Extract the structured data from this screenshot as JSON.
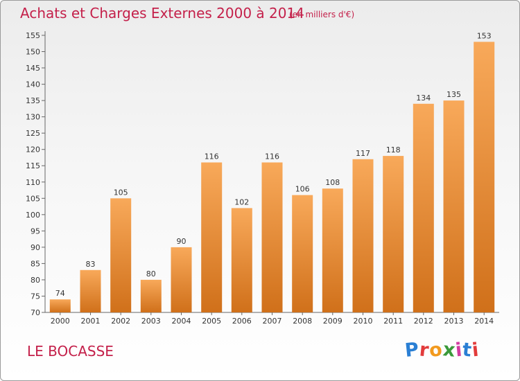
{
  "header": {
    "title": "Achats et Charges Externes 2000 à 2014",
    "subtitle": "(en milliers d'€)"
  },
  "footer": {
    "commune": "LE BOCASSE",
    "logo_text": "Proxiti"
  },
  "chart_data": {
    "type": "bar",
    "title": "Achats et Charges Externes 2000 à 2014",
    "subtitle": "(en milliers d'€)",
    "categories": [
      "2000",
      "2001",
      "2002",
      "2003",
      "2004",
      "2005",
      "2006",
      "2007",
      "2008",
      "2009",
      "2010",
      "2011",
      "2012",
      "2013",
      "2014"
    ],
    "values": [
      74,
      83,
      105,
      80,
      90,
      116,
      102,
      116,
      106,
      108,
      117,
      118,
      134,
      135,
      153
    ],
    "ylim": [
      70,
      155
    ],
    "yticks": [
      70,
      75,
      80,
      85,
      90,
      95,
      100,
      105,
      110,
      115,
      120,
      125,
      130,
      135,
      140,
      145,
      150,
      155
    ],
    "grid": false,
    "data_labels": true,
    "bar_color_top": "#f8a95a",
    "bar_color_bottom": "#d0701a",
    "text_color": "#c4204a"
  }
}
